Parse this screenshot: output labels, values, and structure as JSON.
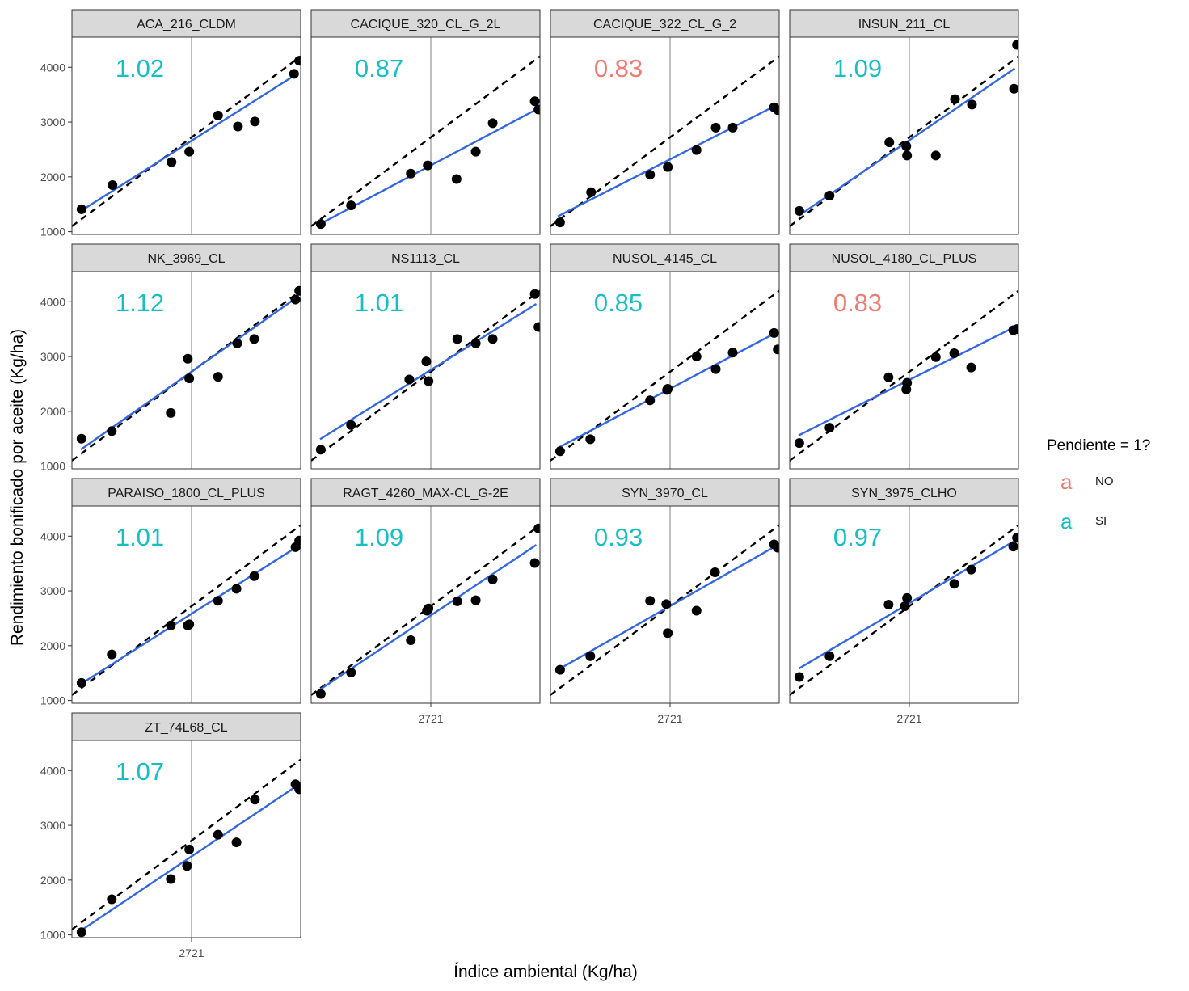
{
  "chart_data": {
    "type": "scatter",
    "layout": "facet-grid",
    "xlabel": "Índice ambiental (Kg/ha)",
    "ylabel": "Rendimiento bonificado por aceite (Kg/ha)",
    "xlim": [
      1100,
      4200
    ],
    "ylim": [
      950,
      4550
    ],
    "x_ticks": [
      2721
    ],
    "x_tick_labels": [
      "2721"
    ],
    "y_ticks": [
      1000,
      2000,
      3000,
      4000
    ],
    "y_tick_labels": [
      "1000",
      "2000",
      "3000",
      "4000"
    ],
    "vline_x": 2721,
    "reference_line": {
      "slope": 1,
      "intercept": 0,
      "style": "dashed",
      "color": "#000000"
    },
    "fit_line_color": "#3366e0",
    "point_color": "#000000",
    "vline_color": "#bfbfbf",
    "legend": {
      "title": "Pendiente = 1?",
      "glyph": "a",
      "items": [
        {
          "label": "NO",
          "color": "#f07a6f"
        },
        {
          "label": "SI",
          "color": "#16bfc4"
        }
      ]
    },
    "panels": [
      {
        "name": "ACA_216_CLDM",
        "slope_label": "1.02",
        "group": "SI",
        "fit": [
          [
            1200,
            1360
          ],
          [
            4150,
            3880
          ]
        ],
        "points": [
          [
            1230,
            1410
          ],
          [
            1650,
            1850
          ],
          [
            2450,
            2270
          ],
          [
            2690,
            2460
          ],
          [
            3080,
            3120
          ],
          [
            3350,
            2920
          ],
          [
            3580,
            3010
          ],
          [
            4110,
            3880
          ],
          [
            4180,
            4120
          ]
        ]
      },
      {
        "name": "CACIQUE_320_CL_G_2L",
        "slope_label": "0.87",
        "group": "SI",
        "fit": [
          [
            1220,
            1140
          ],
          [
            4180,
            3250
          ]
        ],
        "points": [
          [
            1230,
            1140
          ],
          [
            1640,
            1480
          ],
          [
            2450,
            2060
          ],
          [
            2680,
            2210
          ],
          [
            3070,
            1960
          ],
          [
            3330,
            2460
          ],
          [
            3560,
            2980
          ],
          [
            4130,
            3380
          ],
          [
            4180,
            3230
          ]
        ]
      },
      {
        "name": "CACIQUE_322_CL_G_2",
        "slope_label": "0.83",
        "group": "NO",
        "fit": [
          [
            1200,
            1280
          ],
          [
            4180,
            3320
          ]
        ],
        "points": [
          [
            1230,
            1170
          ],
          [
            1650,
            1720
          ],
          [
            2450,
            2040
          ],
          [
            2690,
            2180
          ],
          [
            3080,
            2490
          ],
          [
            3340,
            2900
          ],
          [
            3570,
            2900
          ],
          [
            4130,
            3270
          ],
          [
            4180,
            3220
          ]
        ]
      },
      {
        "name": "INSUN_211_CL",
        "slope_label": "1.09",
        "group": "SI",
        "fit": [
          [
            1220,
            1290
          ],
          [
            4150,
            3980
          ]
        ],
        "points": [
          [
            1230,
            1380
          ],
          [
            1640,
            1660
          ],
          [
            2450,
            2630
          ],
          [
            2680,
            2560
          ],
          [
            2690,
            2390
          ],
          [
            3080,
            2390
          ],
          [
            3340,
            3420
          ],
          [
            3570,
            3320
          ],
          [
            4140,
            3610
          ],
          [
            4180,
            4410
          ]
        ]
      },
      {
        "name": "NK_3969_CL",
        "slope_label": "1.12",
        "group": "SI",
        "fit": [
          [
            1220,
            1300
          ],
          [
            4150,
            4080
          ]
        ],
        "points": [
          [
            1230,
            1500
          ],
          [
            1640,
            1640
          ],
          [
            2440,
            1970
          ],
          [
            2670,
            2960
          ],
          [
            2690,
            2600
          ],
          [
            3080,
            2630
          ],
          [
            3340,
            3240
          ],
          [
            3570,
            3320
          ],
          [
            4130,
            4040
          ],
          [
            4180,
            4200
          ]
        ]
      },
      {
        "name": "NS1113_CL",
        "slope_label": "1.01",
        "group": "SI",
        "fit": [
          [
            1220,
            1490
          ],
          [
            4150,
            3960
          ]
        ],
        "points": [
          [
            1230,
            1300
          ],
          [
            1640,
            1750
          ],
          [
            2430,
            2580
          ],
          [
            2660,
            2910
          ],
          [
            2690,
            2550
          ],
          [
            3080,
            3320
          ],
          [
            3330,
            3240
          ],
          [
            3560,
            3320
          ],
          [
            4130,
            4140
          ],
          [
            4180,
            3540
          ]
        ]
      },
      {
        "name": "NUSOL_4145_CL",
        "slope_label": "0.85",
        "group": "SI",
        "fit": [
          [
            1200,
            1330
          ],
          [
            4150,
            3430
          ]
        ],
        "points": [
          [
            1230,
            1270
          ],
          [
            1640,
            1490
          ],
          [
            2450,
            2200
          ],
          [
            2680,
            2390
          ],
          [
            2690,
            2410
          ],
          [
            3080,
            3000
          ],
          [
            3340,
            2770
          ],
          [
            3570,
            3070
          ],
          [
            4130,
            3430
          ],
          [
            4180,
            3130
          ]
        ]
      },
      {
        "name": "NUSOL_4180_CL_PLUS",
        "slope_label": "0.83",
        "group": "NO",
        "fit": [
          [
            1220,
            1560
          ],
          [
            4180,
            3560
          ]
        ],
        "points": [
          [
            1230,
            1420
          ],
          [
            1640,
            1700
          ],
          [
            2440,
            2620
          ],
          [
            2680,
            2400
          ],
          [
            2690,
            2520
          ],
          [
            3080,
            2990
          ],
          [
            3330,
            3060
          ],
          [
            3560,
            2800
          ],
          [
            4130,
            3480
          ],
          [
            4180,
            3500
          ]
        ]
      },
      {
        "name": "PARAISO_1800_CL_PLUS",
        "slope_label": "1.01",
        "group": "SI",
        "fit": [
          [
            1220,
            1300
          ],
          [
            4180,
            3830
          ]
        ],
        "points": [
          [
            1230,
            1320
          ],
          [
            1640,
            1840
          ],
          [
            2440,
            2370
          ],
          [
            2670,
            2370
          ],
          [
            2690,
            2390
          ],
          [
            3080,
            2820
          ],
          [
            3330,
            3040
          ],
          [
            3570,
            3270
          ],
          [
            4130,
            3800
          ],
          [
            4180,
            3920
          ]
        ]
      },
      {
        "name": "RAGT_4260_MAX-CL_G-2E",
        "slope_label": "1.09",
        "group": "SI",
        "fit": [
          [
            1220,
            1200
          ],
          [
            4150,
            3840
          ]
        ],
        "points": [
          [
            1230,
            1120
          ],
          [
            1640,
            1510
          ],
          [
            2450,
            2100
          ],
          [
            2670,
            2640
          ],
          [
            2690,
            2680
          ],
          [
            3080,
            2810
          ],
          [
            3330,
            2830
          ],
          [
            3560,
            3210
          ],
          [
            4130,
            3510
          ],
          [
            4180,
            4140
          ]
        ]
      },
      {
        "name": "SYN_3970_CL",
        "slope_label": "0.93",
        "group": "SI",
        "fit": [
          [
            1200,
            1560
          ],
          [
            4180,
            3840
          ]
        ],
        "points": [
          [
            1230,
            1560
          ],
          [
            1640,
            1810
          ],
          [
            2450,
            2820
          ],
          [
            2670,
            2760
          ],
          [
            2690,
            2230
          ],
          [
            3080,
            2640
          ],
          [
            3330,
            3340
          ],
          [
            4130,
            3850
          ],
          [
            4180,
            3790
          ]
        ]
      },
      {
        "name": "SYN_3975_CLHO",
        "slope_label": "0.97",
        "group": "SI",
        "fit": [
          [
            1220,
            1580
          ],
          [
            4180,
            3940
          ]
        ],
        "points": [
          [
            1230,
            1430
          ],
          [
            1640,
            1810
          ],
          [
            2440,
            2750
          ],
          [
            2660,
            2720
          ],
          [
            2690,
            2870
          ],
          [
            3330,
            3130
          ],
          [
            3560,
            3390
          ],
          [
            4130,
            3810
          ],
          [
            4180,
            3970
          ]
        ]
      },
      {
        "name": "ZT_74L68_CL",
        "slope_label": "1.07",
        "group": "SI",
        "fit": [
          [
            1200,
            1060
          ],
          [
            4180,
            3750
          ]
        ],
        "points": [
          [
            1230,
            1050
          ],
          [
            1640,
            1650
          ],
          [
            2440,
            2020
          ],
          [
            2660,
            2260
          ],
          [
            2690,
            2560
          ],
          [
            3080,
            2830
          ],
          [
            3330,
            2690
          ],
          [
            3580,
            3470
          ],
          [
            4130,
            3750
          ],
          [
            4180,
            3660
          ]
        ]
      }
    ]
  }
}
